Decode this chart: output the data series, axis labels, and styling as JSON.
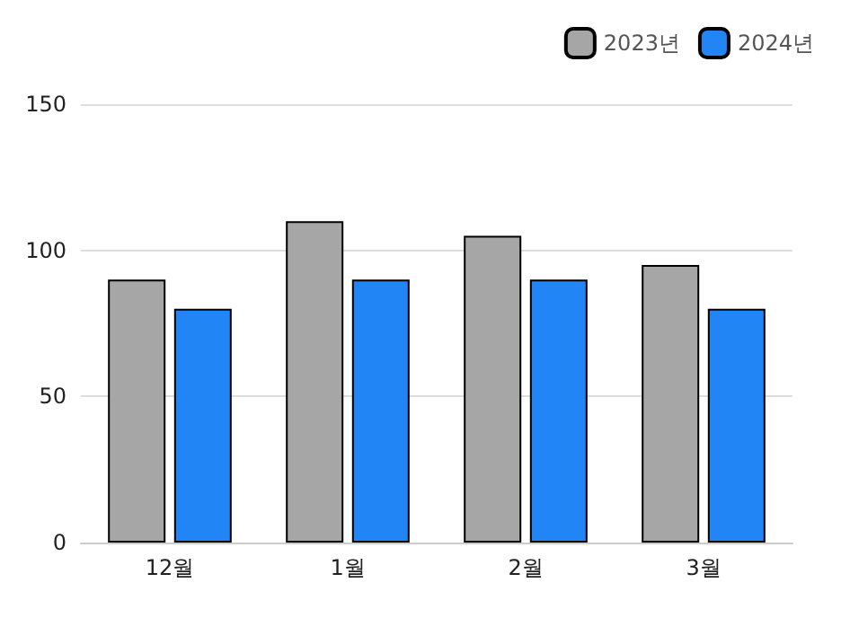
{
  "chart_data": {
    "type": "bar",
    "categories": [
      "12월",
      "1월",
      "2월",
      "3월"
    ],
    "series": [
      {
        "name": "2023년",
        "color": "#a6a6a6",
        "values": [
          90,
          110,
          105,
          95
        ]
      },
      {
        "name": "2024년",
        "color": "#2185f5",
        "values": [
          80,
          90,
          90,
          80
        ]
      }
    ],
    "ylim": [
      0,
      150
    ],
    "yticks": [
      0,
      50,
      100,
      150
    ],
    "grid": "y",
    "legend": "top right"
  }
}
